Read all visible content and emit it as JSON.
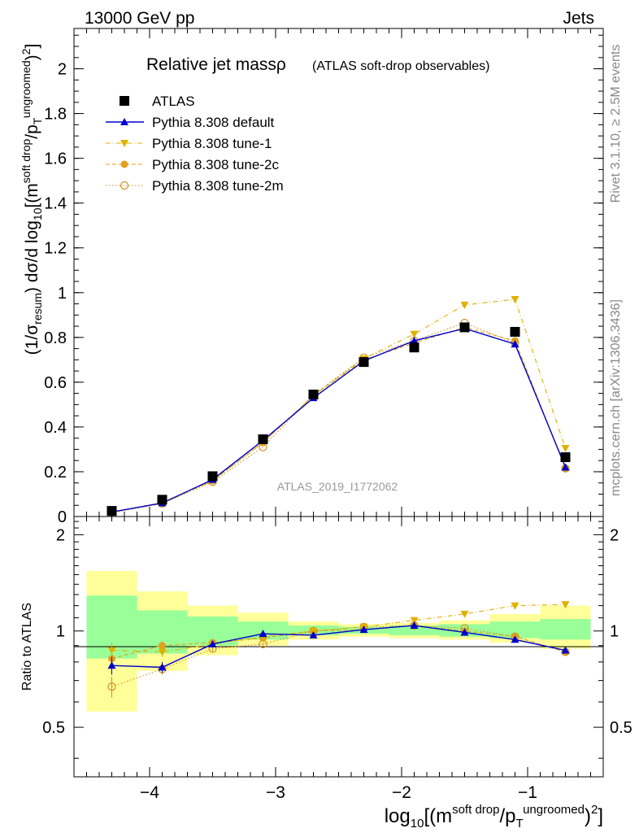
{
  "header": {
    "left": "13000 GeV pp",
    "right": "Jets"
  },
  "side": {
    "rivet": "Rivet 3.1.10, ≥ 2.5M events",
    "mcplots": "mcplots.cern.ch [arXiv:1306.3436]"
  },
  "chart_data": {
    "type": "scatter",
    "title": "Relative jet massρ",
    "subtitle": "(ATLAS soft-drop observables)",
    "watermark": "ATLAS_2019_I1772062",
    "xlabel": "log10[(m^soft drop/pT^ungroomed)^2]",
    "ylabel": "(1/σresum) dσ/d log10[(m^soft drop/pT^ungroomed)^2]",
    "ratio_ylabel": "Ratio to ATLAS",
    "xlim": [
      -4.6,
      -0.4
    ],
    "ylim": [
      0,
      2.18
    ],
    "ratio_ylim": [
      0.35,
      2.28
    ],
    "x_ticks": [
      -4,
      -3,
      -2,
      -1
    ],
    "x_tick_labels": [
      "−4",
      "−3",
      "−2",
      "−1"
    ],
    "y_ticks": [
      0,
      0.2,
      0.4,
      0.6,
      0.8,
      1,
      1.2,
      1.4,
      1.6,
      1.8,
      2
    ],
    "y_tick_labels": [
      "0",
      "0.2",
      "0.4",
      "0.6",
      "0.8",
      "1",
      "1.2",
      "1.4",
      "1.6",
      "1.8",
      "2"
    ],
    "ratio_ticks": [
      0.5,
      1,
      2
    ],
    "ratio_tick_labels": [
      "0.5",
      "1",
      "2"
    ],
    "legend_position": "top-left",
    "x": [
      -4.3,
      -3.9,
      -3.5,
      -3.1,
      -2.7,
      -2.3,
      -1.9,
      -1.5,
      -1.1,
      -0.7
    ],
    "bin_edges": [
      -4.5,
      -4.1,
      -3.7,
      -3.3,
      -2.9,
      -2.5,
      -2.1,
      -1.7,
      -1.3,
      -0.9,
      -0.5
    ],
    "band_stat": [
      [
        0.82,
        1.29
      ],
      [
        0.85,
        1.16
      ],
      [
        0.9,
        1.11
      ],
      [
        0.94,
        1.07
      ],
      [
        0.97,
        1.04
      ],
      [
        0.98,
        1.03
      ],
      [
        0.97,
        1.04
      ],
      [
        0.96,
        1.05
      ],
      [
        0.95,
        1.07
      ],
      [
        0.94,
        1.09
      ]
    ],
    "band_total": [
      [
        0.56,
        1.54
      ],
      [
        0.75,
        1.33
      ],
      [
        0.84,
        1.2
      ],
      [
        0.9,
        1.14
      ],
      [
        0.94,
        1.07
      ],
      [
        0.96,
        1.05
      ],
      [
        0.95,
        1.06
      ],
      [
        0.94,
        1.08
      ],
      [
        0.92,
        1.13
      ],
      [
        0.88,
        1.2
      ]
    ],
    "series": [
      {
        "name": "ATLAS",
        "color": "#000000",
        "marker": "square",
        "line": "none",
        "values": [
          0.025,
          0.075,
          0.18,
          0.345,
          0.545,
          0.69,
          0.755,
          0.845,
          0.825,
          0.265
        ],
        "ratio": null
      },
      {
        "name": "Pythia 8.308 default",
        "color": "#0000cc",
        "marker": "triangle-up",
        "line": "solid",
        "values": [
          0.02,
          0.06,
          0.165,
          0.34,
          0.53,
          0.695,
          0.785,
          0.84,
          0.77,
          0.22
        ],
        "ratio": [
          0.78,
          0.77,
          0.91,
          0.98,
          0.97,
          1.01,
          1.04,
          0.99,
          0.94,
          0.87
        ],
        "ratio_err": [
          0.05,
          0.03,
          0.02,
          0.01,
          0.01,
          0.01,
          0.01,
          0.01,
          0.01,
          0.01
        ]
      },
      {
        "name": "Pythia 8.308 tune-1",
        "color": "#e0b000",
        "marker": "triangle-down",
        "line": "dashdot",
        "values": [
          0.02,
          0.058,
          0.16,
          0.33,
          0.54,
          0.705,
          0.815,
          0.945,
          0.97,
          0.305
        ],
        "ratio": [
          0.87,
          0.86,
          0.91,
          0.96,
          1.0,
          1.03,
          1.08,
          1.13,
          1.2,
          1.21
        ],
        "ratio_err": [
          0.05,
          0.03,
          0.02,
          0.01,
          0.01,
          0.01,
          0.01,
          0.01,
          0.01,
          0.01
        ]
      },
      {
        "name": "Pythia 8.308 tune-2c",
        "color": "#e0a020",
        "marker": "circle",
        "line": "dashed",
        "values": [
          0.018,
          0.063,
          0.16,
          0.33,
          0.54,
          0.7,
          0.775,
          0.845,
          0.785,
          0.215
        ],
        "ratio": [
          0.82,
          0.9,
          0.92,
          0.95,
          1.0,
          1.01,
          1.04,
          1.0,
          0.96,
          0.86
        ],
        "ratio_err": [
          0.05,
          0.03,
          0.02,
          0.01,
          0.01,
          0.01,
          0.01,
          0.01,
          0.01,
          0.01
        ]
      },
      {
        "name": "Pythia 8.308 tune-2m",
        "color": "#d09020",
        "marker": "circle-open",
        "line": "dotted",
        "values": [
          0.016,
          0.058,
          0.155,
          0.31,
          0.545,
          0.71,
          0.785,
          0.865,
          0.775,
          0.215
        ],
        "ratio": [
          0.67,
          0.76,
          0.88,
          0.91,
          1.0,
          1.03,
          1.04,
          1.02,
          0.96,
          0.86
        ],
        "ratio_err": [
          0.05,
          0.03,
          0.02,
          0.01,
          0.01,
          0.01,
          0.01,
          0.01,
          0.01,
          0.01
        ]
      }
    ]
  }
}
